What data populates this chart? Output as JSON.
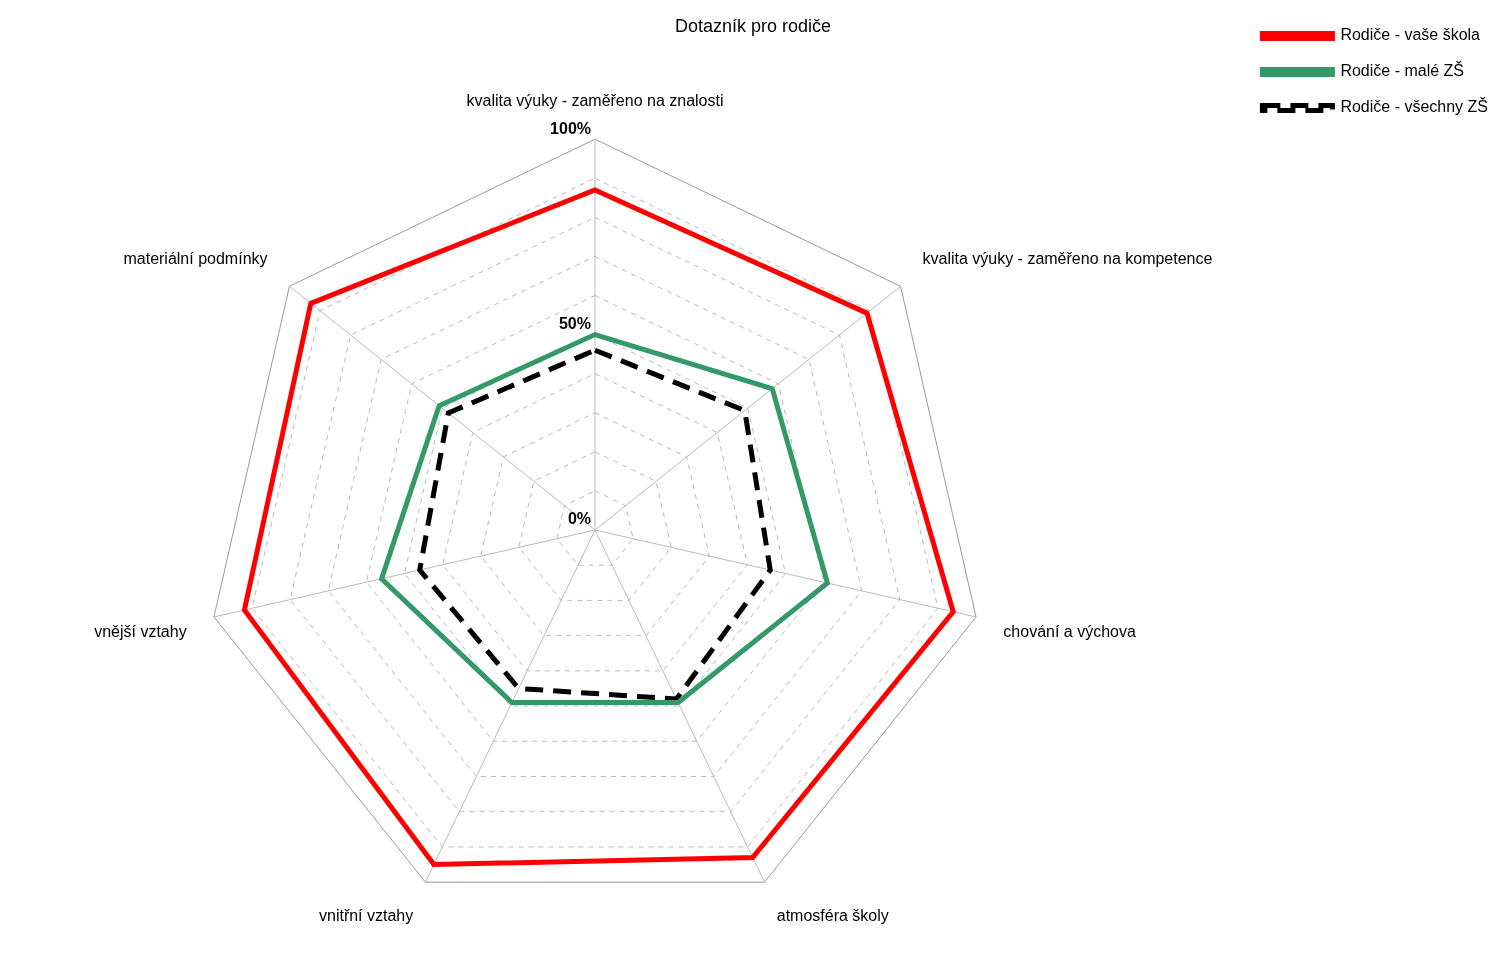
{
  "chart_data": {
    "type": "radar",
    "title": "Dotazník pro rodiče",
    "categories": [
      "kvalita výuky - zaměřeno na znalosti",
      "kvalita výuky - zaměřeno na kompetence",
      "chování a výchova",
      "atmosféra školy",
      "vnitřní vztahy",
      "vnější vztahy",
      "materiální podmínky"
    ],
    "series": [
      {
        "name": "Rodiče - vaše škola",
        "color": "#ff0000",
        "values": [
          87,
          89,
          94,
          93,
          95,
          92,
          93
        ]
      },
      {
        "name": "Rodiče - malé ZŠ",
        "color": "#339966",
        "values": [
          50,
          58,
          61,
          49,
          49,
          56,
          51
        ]
      },
      {
        "name": "Rodiče - všechny ZŠ",
        "color": "#000000",
        "line_style": "dashed",
        "values": [
          46,
          49,
          46,
          48,
          45,
          46,
          48
        ]
      }
    ],
    "ylim": [
      0,
      100
    ],
    "yticks": [
      {
        "value": 0,
        "label": "0%"
      },
      {
        "value": 50,
        "label": "50%"
      },
      {
        "value": 100,
        "label": "100%"
      }
    ],
    "grid": true,
    "legend": "top right",
    "marker": "none"
  }
}
